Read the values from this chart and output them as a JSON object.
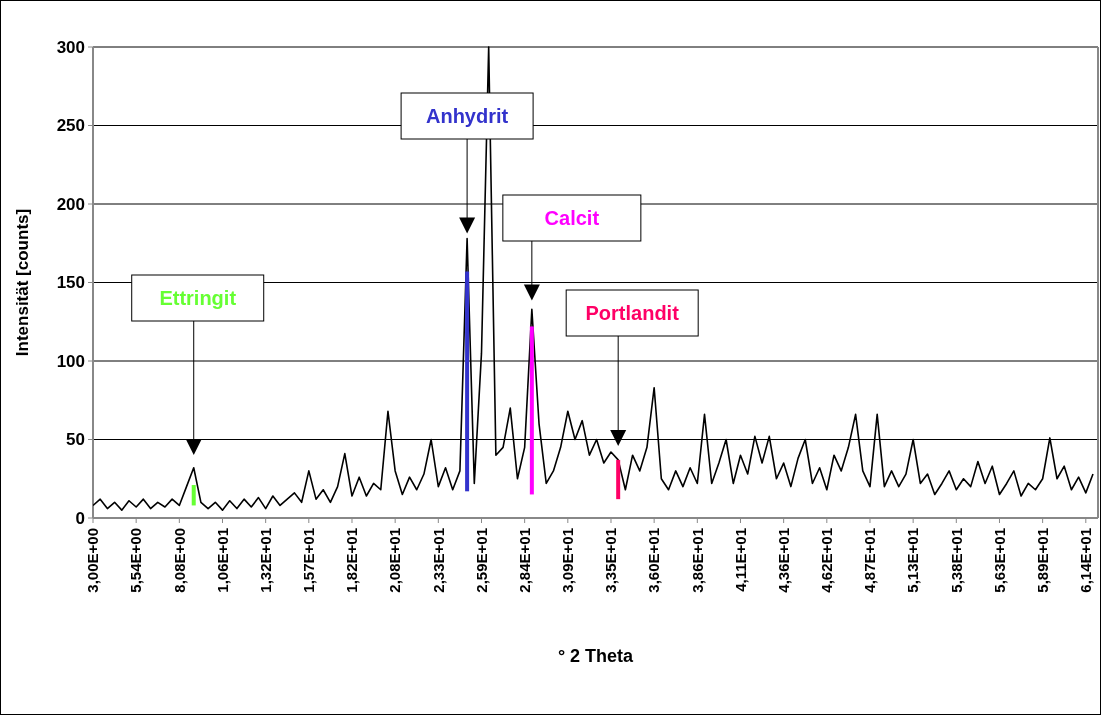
{
  "chart_data": {
    "type": "line",
    "xlabel": "° 2 Theta",
    "ylabel": "Intensität [counts]",
    "ylim": [
      0,
      300
    ],
    "categories": [
      "3,00E+00",
      null,
      null,
      null,
      null,
      null,
      "5,54E+00",
      null,
      null,
      null,
      null,
      null,
      "8,08E+00",
      null,
      null,
      null,
      null,
      null,
      "1,06E+01",
      null,
      null,
      null,
      null,
      null,
      "1,32E+01",
      null,
      null,
      null,
      null,
      null,
      "1,57E+01",
      null,
      null,
      null,
      null,
      null,
      "1,82E+01",
      null,
      null,
      null,
      null,
      null,
      "2,08E+01",
      null,
      null,
      null,
      null,
      null,
      "2,33E+01",
      null,
      null,
      null,
      null,
      null,
      "2,59E+01",
      null,
      null,
      null,
      null,
      null,
      "2,84E+01",
      null,
      null,
      null,
      null,
      null,
      "3,09E+01",
      null,
      null,
      null,
      null,
      null,
      "3,35E+01",
      null,
      null,
      null,
      null,
      null,
      "3,60E+01",
      null,
      null,
      null,
      null,
      null,
      "3,86E+01",
      null,
      null,
      null,
      null,
      null,
      "4,11E+01",
      null,
      null,
      null,
      null,
      null,
      "4,36E+01",
      null,
      null,
      null,
      null,
      null,
      "4,62E+01",
      null,
      null,
      null,
      null,
      null,
      "4,87E+01",
      null,
      null,
      null,
      null,
      null,
      "5,13E+01",
      null,
      null,
      null,
      null,
      null,
      "5,38E+01",
      null,
      null,
      null,
      null,
      null,
      "5,63E+01",
      null,
      null,
      null,
      null,
      null,
      "5,89E+01",
      null,
      null,
      null,
      null,
      null,
      "6,14E+01",
      null
    ],
    "yticks": [
      0,
      50,
      100,
      150,
      200,
      250,
      300
    ],
    "grid": "y",
    "line_style": "solid",
    "marker": "none",
    "series": [
      {
        "color": "#000000",
        "values": [
          8,
          12,
          6,
          10,
          5,
          11,
          7,
          12,
          6,
          10,
          7,
          12,
          8,
          20,
          32,
          10,
          6,
          10,
          5,
          11,
          6,
          12,
          7,
          13,
          6,
          14,
          8,
          12,
          16,
          10,
          30,
          12,
          18,
          10,
          20,
          41,
          14,
          26,
          14,
          22,
          18,
          68,
          30,
          15,
          26,
          18,
          28,
          50,
          20,
          32,
          18,
          30,
          178,
          22,
          105,
          300,
          40,
          45,
          70,
          25,
          45,
          133,
          60,
          22,
          30,
          45,
          68,
          50,
          62,
          40,
          50,
          35,
          42,
          37,
          18,
          40,
          30,
          45,
          83,
          25,
          18,
          30,
          20,
          32,
          22,
          66,
          22,
          35,
          50,
          22,
          40,
          28,
          52,
          35,
          52,
          25,
          35,
          20,
          38,
          50,
          22,
          32,
          18,
          40,
          30,
          45,
          66,
          30,
          20,
          66,
          20,
          30,
          20,
          28,
          50,
          22,
          28,
          15,
          22,
          30,
          18,
          25,
          20,
          36,
          22,
          33,
          15,
          22,
          30,
          14,
          22,
          18,
          25,
          51,
          25,
          33,
          18,
          26,
          16,
          28
        ]
      },
      {
        "name": "Ettringit",
        "type": "bar",
        "color": "#66ff33",
        "base": [
          null,
          null,
          null,
          null,
          null,
          null,
          null,
          null,
          null,
          null,
          null,
          null,
          null,
          null,
          8,
          null,
          null,
          null,
          null,
          null,
          null,
          null,
          null,
          null,
          null,
          null,
          null,
          null,
          null,
          null,
          null,
          null,
          null,
          null,
          null,
          null,
          null,
          null,
          null,
          null,
          null,
          null,
          null,
          null,
          null,
          null,
          null,
          null,
          null,
          null,
          null,
          null,
          null,
          null,
          null,
          null,
          null,
          null,
          null,
          null,
          null,
          null,
          null,
          null,
          null,
          null,
          null,
          null,
          null,
          null,
          null,
          null,
          null,
          null,
          null,
          null,
          null,
          null,
          null,
          null,
          null,
          null,
          null,
          null,
          null,
          null,
          null,
          null,
          null,
          null,
          null,
          null,
          null,
          null,
          null,
          null,
          null,
          null,
          null,
          null,
          null,
          null,
          null,
          null,
          null,
          null,
          null,
          null,
          null,
          null,
          null,
          null,
          null,
          null,
          null,
          null,
          null,
          null,
          null,
          null,
          null,
          null,
          null,
          null,
          null,
          null,
          null,
          null,
          null,
          null,
          null,
          null,
          null,
          null,
          null,
          null,
          null,
          null,
          null,
          null
        ],
        "values": [
          null,
          null,
          null,
          null,
          null,
          null,
          null,
          null,
          null,
          null,
          null,
          null,
          null,
          null,
          13,
          null,
          null,
          null,
          null,
          null,
          null,
          null,
          null,
          null,
          null,
          null,
          null,
          null,
          null,
          null,
          null,
          null,
          null,
          null,
          null,
          null,
          null,
          null,
          null,
          null,
          null,
          null,
          null,
          null,
          null,
          null,
          null,
          null,
          null,
          null,
          null,
          null,
          null,
          null,
          null,
          null,
          null,
          null,
          null,
          null,
          null,
          null,
          null,
          null,
          null,
          null,
          null,
          null,
          null,
          null,
          null,
          null,
          null,
          null,
          null,
          null,
          null,
          null,
          null,
          null,
          null,
          null,
          null,
          null,
          null,
          null,
          null,
          null,
          null,
          null,
          null,
          null,
          null,
          null,
          null,
          null,
          null,
          null,
          null,
          null,
          null,
          null,
          null,
          null,
          null,
          null,
          null,
          null,
          null,
          null,
          null,
          null,
          null,
          null,
          null,
          null,
          null,
          null,
          null,
          null,
          null,
          null,
          null,
          null,
          null,
          null,
          null,
          null,
          null,
          null,
          null,
          null,
          null,
          null,
          null,
          null,
          null,
          null,
          null,
          null
        ]
      },
      {
        "name": "Anhydrit",
        "type": "bar",
        "color": "#3333cc",
        "base": [
          null,
          null,
          null,
          null,
          null,
          null,
          null,
          null,
          null,
          null,
          null,
          null,
          null,
          null,
          null,
          null,
          null,
          null,
          null,
          null,
          null,
          null,
          null,
          null,
          null,
          null,
          null,
          null,
          null,
          null,
          null,
          null,
          null,
          null,
          null,
          null,
          null,
          null,
          null,
          null,
          null,
          null,
          null,
          null,
          null,
          null,
          null,
          null,
          null,
          null,
          null,
          null,
          17,
          null,
          null,
          null,
          null,
          null,
          null,
          null,
          null,
          null,
          null,
          null,
          null,
          null,
          null,
          null,
          null,
          null,
          null,
          null,
          null,
          null,
          null,
          null,
          null,
          null,
          null,
          null,
          null,
          null,
          null,
          null,
          null,
          null,
          null,
          null,
          null,
          null,
          null,
          null,
          null,
          null,
          null,
          null,
          null,
          null,
          null,
          null,
          null,
          null,
          null,
          null,
          null,
          null,
          null,
          null,
          null,
          null,
          null,
          null,
          null,
          null,
          null,
          null,
          null,
          null,
          null,
          null,
          null,
          null,
          null,
          null,
          null,
          null,
          null,
          null,
          null,
          null,
          null,
          null,
          null,
          null,
          null,
          null,
          null,
          null,
          null,
          null
        ],
        "values": [
          null,
          null,
          null,
          null,
          null,
          null,
          null,
          null,
          null,
          null,
          null,
          null,
          null,
          null,
          null,
          null,
          null,
          null,
          null,
          null,
          null,
          null,
          null,
          null,
          null,
          null,
          null,
          null,
          null,
          null,
          null,
          null,
          null,
          null,
          null,
          null,
          null,
          null,
          null,
          null,
          null,
          null,
          null,
          null,
          null,
          null,
          null,
          null,
          null,
          null,
          null,
          null,
          140,
          null,
          null,
          null,
          null,
          null,
          null,
          null,
          null,
          null,
          null,
          null,
          null,
          null,
          null,
          null,
          null,
          null,
          null,
          null,
          null,
          null,
          null,
          null,
          null,
          null,
          null,
          null,
          null,
          null,
          null,
          null,
          null,
          null,
          null,
          null,
          null,
          null,
          null,
          null,
          null,
          null,
          null,
          null,
          null,
          null,
          null,
          null,
          null,
          null,
          null,
          null,
          null,
          null,
          null,
          null,
          null,
          null,
          null,
          null,
          null,
          null,
          null,
          null,
          null,
          null,
          null,
          null,
          null,
          null,
          null,
          null,
          null,
          null,
          null,
          null,
          null,
          null,
          null,
          null,
          null,
          null,
          null,
          null,
          null,
          null,
          null,
          null
        ]
      },
      {
        "name": "Calcit",
        "type": "bar",
        "color": "#ff00ff",
        "base": [
          null,
          null,
          null,
          null,
          null,
          null,
          null,
          null,
          null,
          null,
          null,
          null,
          null,
          null,
          null,
          null,
          null,
          null,
          null,
          null,
          null,
          null,
          null,
          null,
          null,
          null,
          null,
          null,
          null,
          null,
          null,
          null,
          null,
          null,
          null,
          null,
          null,
          null,
          null,
          null,
          null,
          null,
          null,
          null,
          null,
          null,
          null,
          null,
          null,
          null,
          null,
          null,
          null,
          null,
          null,
          null,
          null,
          null,
          null,
          null,
          null,
          15,
          null,
          null,
          null,
          null,
          null,
          null,
          null,
          null,
          null,
          null,
          null,
          null,
          null,
          null,
          null,
          null,
          null,
          null,
          null,
          null,
          null,
          null,
          null,
          null,
          null,
          null,
          null,
          null,
          null,
          null,
          null,
          null,
          null,
          null,
          null,
          null,
          null,
          null,
          null,
          null,
          null,
          null,
          null,
          null,
          null,
          null,
          null,
          null,
          null,
          null,
          null,
          null,
          null,
          null,
          null,
          null,
          null,
          null,
          null,
          null,
          null,
          null,
          null,
          null,
          null,
          null,
          null,
          null,
          null,
          null,
          null,
          null,
          null,
          null,
          null,
          null,
          null,
          null
        ],
        "values": [
          null,
          null,
          null,
          null,
          null,
          null,
          null,
          null,
          null,
          null,
          null,
          null,
          null,
          null,
          null,
          null,
          null,
          null,
          null,
          null,
          null,
          null,
          null,
          null,
          null,
          null,
          null,
          null,
          null,
          null,
          null,
          null,
          null,
          null,
          null,
          null,
          null,
          null,
          null,
          null,
          null,
          null,
          null,
          null,
          null,
          null,
          null,
          null,
          null,
          null,
          null,
          null,
          null,
          null,
          null,
          null,
          null,
          null,
          null,
          null,
          null,
          107,
          null,
          null,
          null,
          null,
          null,
          null,
          null,
          null,
          null,
          null,
          null,
          null,
          null,
          null,
          null,
          null,
          null,
          null,
          null,
          null,
          null,
          null,
          null,
          null,
          null,
          null,
          null,
          null,
          null,
          null,
          null,
          null,
          null,
          null,
          null,
          null,
          null,
          null,
          null,
          null,
          null,
          null,
          null,
          null,
          null,
          null,
          null,
          null,
          null,
          null,
          null,
          null,
          null,
          null,
          null,
          null,
          null,
          null,
          null,
          null,
          null,
          null,
          null,
          null,
          null,
          null,
          null,
          null,
          null,
          null,
          null,
          null,
          null,
          null,
          null,
          null,
          null,
          null
        ]
      },
      {
        "name": "Portlandit",
        "type": "bar",
        "color": "#ff0066",
        "base": [
          null,
          null,
          null,
          null,
          null,
          null,
          null,
          null,
          null,
          null,
          null,
          null,
          null,
          null,
          null,
          null,
          null,
          null,
          null,
          null,
          null,
          null,
          null,
          null,
          null,
          null,
          null,
          null,
          null,
          null,
          null,
          null,
          null,
          null,
          null,
          null,
          null,
          null,
          null,
          null,
          null,
          null,
          null,
          null,
          null,
          null,
          null,
          null,
          null,
          null,
          null,
          null,
          null,
          null,
          null,
          null,
          null,
          null,
          null,
          null,
          null,
          null,
          null,
          null,
          null,
          null,
          null,
          null,
          null,
          null,
          null,
          null,
          null,
          12,
          null,
          null,
          null,
          null,
          null,
          null,
          null,
          null,
          null,
          null,
          null,
          null,
          null,
          null,
          null,
          null,
          null,
          null,
          null,
          null,
          null,
          null,
          null,
          null,
          null,
          null,
          null,
          null,
          null,
          null,
          null,
          null,
          null,
          null,
          null,
          null,
          null,
          null,
          null,
          null,
          null,
          null,
          null,
          null,
          null,
          null,
          null,
          null,
          null,
          null,
          null,
          null,
          null,
          null,
          null,
          null,
          null,
          null,
          null,
          null,
          null,
          null,
          null,
          null,
          null,
          null
        ],
        "values": [
          null,
          null,
          null,
          null,
          null,
          null,
          null,
          null,
          null,
          null,
          null,
          null,
          null,
          null,
          null,
          null,
          null,
          null,
          null,
          null,
          null,
          null,
          null,
          null,
          null,
          null,
          null,
          null,
          null,
          null,
          null,
          null,
          null,
          null,
          null,
          null,
          null,
          null,
          null,
          null,
          null,
          null,
          null,
          null,
          null,
          null,
          null,
          null,
          null,
          null,
          null,
          null,
          null,
          null,
          null,
          null,
          null,
          null,
          null,
          null,
          null,
          null,
          null,
          null,
          null,
          null,
          null,
          null,
          null,
          null,
          null,
          null,
          null,
          25,
          null,
          null,
          null,
          null,
          null,
          null,
          null,
          null,
          null,
          null,
          null,
          null,
          null,
          null,
          null,
          null,
          null,
          null,
          null,
          null,
          null,
          null,
          null,
          null,
          null,
          null,
          null,
          null,
          null,
          null,
          null,
          null,
          null,
          null,
          null,
          null,
          null,
          null,
          null,
          null,
          null,
          null,
          null,
          null,
          null,
          null,
          null,
          null,
          null,
          null,
          null,
          null,
          null,
          null,
          null,
          null,
          null,
          null,
          null,
          null,
          null,
          null,
          null,
          null,
          null,
          null
        ]
      }
    ]
  }
}
